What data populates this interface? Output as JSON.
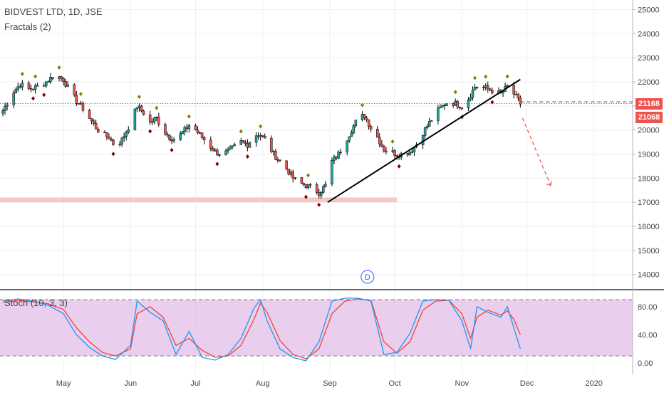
{
  "header": {
    "title": "BIDVEST LTD, 1D, JSE",
    "indicator": "Fractals (2)"
  },
  "stoch": {
    "label": "Stoch (10, 3, 3)",
    "levels": [
      0,
      40,
      80
    ],
    "tick_labels": [
      "80.00",
      "40.00",
      "0.00"
    ]
  },
  "price_tags": {
    "upper": "21168",
    "lower": "21068"
  },
  "dividend_marker": "D",
  "colors": {
    "up": "#26a69a",
    "down": "#ef5350",
    "fractal_up": "#808000",
    "fractal_down": "#800000",
    "stoch_k": "#2196f3",
    "stoch_d": "#f44336",
    "stoch_bg": "#e1bee7",
    "support_zone": "#f8c8c8",
    "red_hline": "#ef5350",
    "trend_line": "#000000",
    "projection": "#ef5350"
  },
  "chart_data": {
    "type": "candlestick",
    "title": "BIDVEST LTD, 1D, JSE",
    "x_tick_labels": [
      "May",
      "Jun",
      "Jul",
      "Aug",
      "Sep",
      "Oct",
      "Nov",
      "Dec",
      "2020"
    ],
    "y_tick_labels": [
      "14000",
      "15000",
      "16000",
      "17000",
      "18000",
      "19000",
      "20000",
      "21000",
      "22000",
      "23000",
      "24000",
      "25000"
    ],
    "ylim": [
      13400,
      25400
    ],
    "price_path": [
      [
        "2019-04-03",
        20800
      ],
      [
        "2019-04-07",
        21500
      ],
      [
        "2019-04-11",
        21900
      ],
      [
        "2019-04-15",
        21700
      ],
      [
        "2019-04-19",
        21800
      ],
      [
        "2019-04-23",
        22000
      ],
      [
        "2019-04-27",
        22300
      ],
      [
        "2019-05-01",
        22100
      ],
      [
        "2019-05-04",
        21600
      ],
      [
        "2019-05-07",
        21200
      ],
      [
        "2019-05-10",
        20900
      ],
      [
        "2019-05-13",
        20500
      ],
      [
        "2019-05-16",
        20100
      ],
      [
        "2019-05-19",
        19800
      ],
      [
        "2019-05-22",
        19700
      ],
      [
        "2019-05-25",
        19300
      ],
      [
        "2019-05-28",
        19600
      ],
      [
        "2019-06-01",
        20300
      ],
      [
        "2019-06-04",
        21000
      ],
      [
        "2019-06-07",
        20700
      ],
      [
        "2019-06-10",
        20300
      ],
      [
        "2019-06-13",
        20500
      ],
      [
        "2019-06-16",
        20000
      ],
      [
        "2019-06-19",
        19700
      ],
      [
        "2019-06-22",
        19600
      ],
      [
        "2019-06-25",
        19900
      ],
      [
        "2019-06-28",
        20200
      ],
      [
        "2019-07-01",
        20000
      ],
      [
        "2019-07-04",
        19700
      ],
      [
        "2019-07-07",
        19400
      ],
      [
        "2019-07-10",
        19100
      ],
      [
        "2019-07-13",
        19000
      ],
      [
        "2019-07-16",
        19100
      ],
      [
        "2019-07-19",
        19300
      ],
      [
        "2019-07-22",
        19500
      ],
      [
        "2019-07-25",
        19400
      ],
      [
        "2019-07-28",
        19800
      ],
      [
        "2019-07-31",
        19800
      ],
      [
        "2019-08-03",
        19500
      ],
      [
        "2019-08-06",
        19000
      ],
      [
        "2019-08-09",
        18700
      ],
      [
        "2019-08-12",
        18400
      ],
      [
        "2019-08-15",
        18000
      ],
      [
        "2019-08-18",
        17800
      ],
      [
        "2019-08-21",
        17700
      ],
      [
        "2019-08-24",
        17600
      ],
      [
        "2019-08-27",
        17400
      ],
      [
        "2019-08-30",
        17700
      ],
      [
        "2019-09-02",
        18700
      ],
      [
        "2019-09-05",
        19000
      ],
      [
        "2019-09-08",
        19500
      ],
      [
        "2019-09-11",
        20000
      ],
      [
        "2019-09-14",
        20500
      ],
      [
        "2019-09-17",
        20600
      ],
      [
        "2019-09-20",
        20100
      ],
      [
        "2019-09-23",
        19700
      ],
      [
        "2019-09-26",
        19200
      ],
      [
        "2019-09-29",
        19100
      ],
      [
        "2019-10-02",
        19000
      ],
      [
        "2019-10-05",
        19000
      ],
      [
        "2019-10-08",
        19100
      ],
      [
        "2019-10-11",
        19400
      ],
      [
        "2019-10-14",
        19900
      ],
      [
        "2019-10-17",
        20300
      ],
      [
        "2019-10-20",
        20700
      ],
      [
        "2019-10-23",
        21000
      ],
      [
        "2019-10-26",
        21200
      ],
      [
        "2019-10-29",
        21100
      ],
      [
        "2019-11-01",
        21000
      ],
      [
        "2019-11-04",
        21300
      ],
      [
        "2019-11-07",
        21800
      ],
      [
        "2019-11-10",
        21800
      ],
      [
        "2019-11-13",
        21700
      ],
      [
        "2019-11-16",
        21600
      ],
      [
        "2019-11-19",
        21500
      ],
      [
        "2019-11-22",
        21800
      ],
      [
        "2019-11-25",
        21500
      ],
      [
        "2019-11-28",
        21100
      ]
    ],
    "stoch_k_path": [
      [
        "2019-04-03",
        88
      ],
      [
        "2019-04-10",
        91
      ],
      [
        "2019-04-17",
        88
      ],
      [
        "2019-04-24",
        82
      ],
      [
        "2019-05-01",
        70
      ],
      [
        "2019-05-07",
        40
      ],
      [
        "2019-05-13",
        22
      ],
      [
        "2019-05-19",
        10
      ],
      [
        "2019-05-25",
        5
      ],
      [
        "2019-06-01",
        25
      ],
      [
        "2019-06-04",
        88
      ],
      [
        "2019-06-10",
        72
      ],
      [
        "2019-06-16",
        60
      ],
      [
        "2019-06-22",
        12
      ],
      [
        "2019-06-28",
        45
      ],
      [
        "2019-07-04",
        8
      ],
      [
        "2019-07-10",
        4
      ],
      [
        "2019-07-16",
        12
      ],
      [
        "2019-07-22",
        35
      ],
      [
        "2019-07-28",
        78
      ],
      [
        "2019-07-31",
        90
      ],
      [
        "2019-08-03",
        60
      ],
      [
        "2019-08-09",
        20
      ],
      [
        "2019-08-15",
        8
      ],
      [
        "2019-08-21",
        3
      ],
      [
        "2019-08-27",
        30
      ],
      [
        "2019-09-02",
        88
      ],
      [
        "2019-09-08",
        92
      ],
      [
        "2019-09-14",
        92
      ],
      [
        "2019-09-20",
        88
      ],
      [
        "2019-09-26",
        12
      ],
      [
        "2019-10-02",
        15
      ],
      [
        "2019-10-08",
        42
      ],
      [
        "2019-10-14",
        88
      ],
      [
        "2019-10-20",
        90
      ],
      [
        "2019-10-26",
        89
      ],
      [
        "2019-11-01",
        60
      ],
      [
        "2019-11-05",
        20
      ],
      [
        "2019-11-08",
        80
      ],
      [
        "2019-11-13",
        72
      ],
      [
        "2019-11-19",
        65
      ],
      [
        "2019-11-22",
        80
      ],
      [
        "2019-11-25",
        50
      ],
      [
        "2019-11-28",
        20
      ]
    ],
    "stoch_d_path": [
      [
        "2019-04-03",
        86
      ],
      [
        "2019-04-10",
        89
      ],
      [
        "2019-04-17",
        87
      ],
      [
        "2019-04-24",
        84
      ],
      [
        "2019-05-01",
        76
      ],
      [
        "2019-05-07",
        50
      ],
      [
        "2019-05-13",
        30
      ],
      [
        "2019-05-19",
        15
      ],
      [
        "2019-05-25",
        10
      ],
      [
        "2019-06-01",
        20
      ],
      [
        "2019-06-04",
        70
      ],
      [
        "2019-06-10",
        80
      ],
      [
        "2019-06-16",
        65
      ],
      [
        "2019-06-22",
        25
      ],
      [
        "2019-06-28",
        35
      ],
      [
        "2019-07-04",
        18
      ],
      [
        "2019-07-10",
        8
      ],
      [
        "2019-07-16",
        10
      ],
      [
        "2019-07-22",
        25
      ],
      [
        "2019-07-28",
        62
      ],
      [
        "2019-07-31",
        85
      ],
      [
        "2019-08-03",
        72
      ],
      [
        "2019-08-09",
        32
      ],
      [
        "2019-08-15",
        12
      ],
      [
        "2019-08-21",
        6
      ],
      [
        "2019-08-27",
        20
      ],
      [
        "2019-09-02",
        70
      ],
      [
        "2019-09-08",
        88
      ],
      [
        "2019-09-14",
        91
      ],
      [
        "2019-09-20",
        89
      ],
      [
        "2019-09-26",
        30
      ],
      [
        "2019-10-02",
        14
      ],
      [
        "2019-10-08",
        30
      ],
      [
        "2019-10-14",
        75
      ],
      [
        "2019-10-20",
        88
      ],
      [
        "2019-10-26",
        89
      ],
      [
        "2019-11-01",
        70
      ],
      [
        "2019-11-05",
        35
      ],
      [
        "2019-11-08",
        65
      ],
      [
        "2019-11-13",
        75
      ],
      [
        "2019-11-19",
        68
      ],
      [
        "2019-11-22",
        74
      ],
      [
        "2019-11-25",
        62
      ],
      [
        "2019-11-28",
        40
      ]
    ],
    "annotations": {
      "resistance_level": 21100,
      "support_zone": [
        17000,
        17200
      ],
      "support_zone_end": "2019-10-02",
      "trend_line": [
        [
          "2019-08-31",
          17000
        ],
        [
          "2019-11-28",
          22100
        ]
      ],
      "projection": [
        [
          "2019-11-29",
          20500
        ],
        [
          "2019-12-12",
          17700
        ]
      ]
    }
  }
}
